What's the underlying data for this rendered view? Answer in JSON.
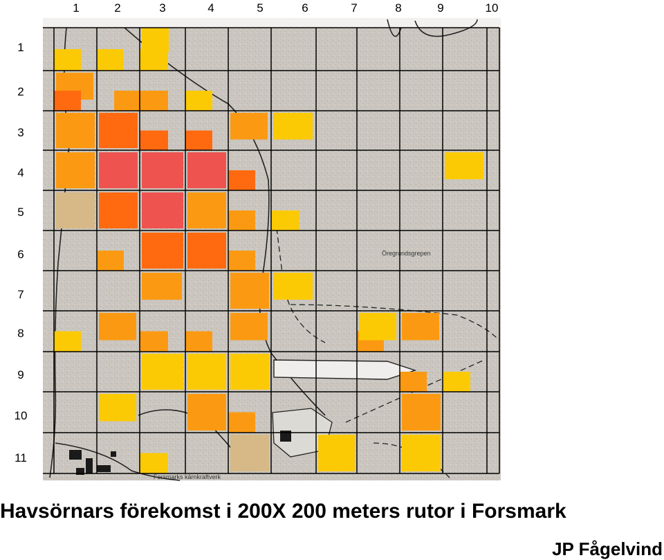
{
  "columns": [
    "1",
    "2",
    "3",
    "4",
    "5",
    "6",
    "7",
    "8",
    "9",
    "10"
  ],
  "rows": [
    "1",
    "2",
    "3",
    "4",
    "5",
    "6",
    "7",
    "8",
    "9",
    "10",
    "11"
  ],
  "map_labels": {
    "oregrundsgrepen": "Öregrundsgrepen",
    "forsmarks_kraftverk": "Forsmarks kärnkraftverk"
  },
  "title": "Havsörnars förekomst i 200X 200 meters rutor i Forsmark",
  "credit": "JP Fågelvind",
  "colors": {
    "red": "#ee5350",
    "orange_red": "#ff6a10",
    "orange": "#fb9a12",
    "yellow": "#fcca05",
    "tan": "#d6b986",
    "grid": "#000000",
    "map_bg": "#c9c5bf"
  },
  "patches": [
    {
      "c": 1,
      "r": 1,
      "p": "bl",
      "k": "yellow"
    },
    {
      "c": 2,
      "r": 1,
      "p": "bl",
      "k": "yellow"
    },
    {
      "c": 3,
      "r": 1,
      "p": "tl",
      "k": "yellow"
    },
    {
      "c": 3,
      "r": 1,
      "p": "bl",
      "k": "yellow"
    },
    {
      "c": 1,
      "r": 2,
      "p": "tr",
      "k": "orange"
    },
    {
      "c": 1,
      "r": 2,
      "p": "bl",
      "k": "orange_red"
    },
    {
      "c": 2,
      "r": 2,
      "p": "br",
      "k": "orange"
    },
    {
      "c": 3,
      "r": 2,
      "p": "bl",
      "k": "orange"
    },
    {
      "c": 4,
      "r": 2,
      "p": "bl",
      "k": "yellow"
    },
    {
      "c": 1,
      "r": 3,
      "p": "full",
      "k": "orange"
    },
    {
      "c": 2,
      "r": 3,
      "p": "full",
      "k": "orange_red"
    },
    {
      "c": 3,
      "r": 3,
      "p": "bl",
      "k": "orange_red"
    },
    {
      "c": 4,
      "r": 3,
      "p": "bl",
      "k": "orange_red"
    },
    {
      "c": 5,
      "r": 3,
      "p": "tr",
      "k": "orange"
    },
    {
      "c": 6,
      "r": 3,
      "p": "tr",
      "k": "yellow"
    },
    {
      "c": 1,
      "r": 4,
      "p": "full",
      "k": "orange"
    },
    {
      "c": 2,
      "r": 4,
      "p": "full",
      "k": "red"
    },
    {
      "c": 3,
      "r": 4,
      "p": "full",
      "k": "red"
    },
    {
      "c": 4,
      "r": 4,
      "p": "full",
      "k": "red"
    },
    {
      "c": 5,
      "r": 4,
      "p": "bl",
      "k": "orange_red"
    },
    {
      "c": 10,
      "r": 4,
      "p": "tr",
      "k": "yellow"
    },
    {
      "c": 1,
      "r": 5,
      "p": "full",
      "k": "tan"
    },
    {
      "c": 2,
      "r": 5,
      "p": "full",
      "k": "orange_red"
    },
    {
      "c": 3,
      "r": 5,
      "p": "full",
      "k": "red"
    },
    {
      "c": 4,
      "r": 5,
      "p": "full",
      "k": "orange"
    },
    {
      "c": 5,
      "r": 5,
      "p": "bl",
      "k": "orange"
    },
    {
      "c": 6,
      "r": 5,
      "p": "bl",
      "k": "yellow"
    },
    {
      "c": 2,
      "r": 6,
      "p": "bl",
      "k": "orange"
    },
    {
      "c": 3,
      "r": 6,
      "p": "full",
      "k": "orange_red"
    },
    {
      "c": 4,
      "r": 6,
      "p": "full",
      "k": "orange_red"
    },
    {
      "c": 5,
      "r": 6,
      "p": "bl",
      "k": "orange"
    },
    {
      "c": 3,
      "r": 7,
      "p": "tr",
      "k": "orange"
    },
    {
      "c": 5,
      "r": 7,
      "p": "full",
      "k": "orange"
    },
    {
      "c": 6,
      "r": 7,
      "p": "tr",
      "k": "yellow"
    },
    {
      "c": 2,
      "r": 8,
      "p": "tr",
      "k": "orange"
    },
    {
      "c": 1,
      "r": 8,
      "p": "bl",
      "k": "yellow"
    },
    {
      "c": 3,
      "r": 8,
      "p": "bl",
      "k": "orange"
    },
    {
      "c": 4,
      "r": 8,
      "p": "bl",
      "k": "orange"
    },
    {
      "c": 5,
      "r": 8,
      "p": "tr",
      "k": "orange"
    },
    {
      "c": 8,
      "r": 8,
      "p": "bl",
      "k": "orange"
    },
    {
      "c": 8,
      "r": 8,
      "p": "tr",
      "k": "yellow"
    },
    {
      "c": 9,
      "r": 8,
      "p": "tr",
      "k": "orange"
    },
    {
      "c": 3,
      "r": 9,
      "p": "full",
      "k": "yellow"
    },
    {
      "c": 4,
      "r": 9,
      "p": "full",
      "k": "yellow"
    },
    {
      "c": 5,
      "r": 9,
      "p": "full",
      "k": "yellow"
    },
    {
      "c": 9,
      "r": 9,
      "p": "bl",
      "k": "orange"
    },
    {
      "c": 10,
      "r": 9,
      "p": "bl",
      "k": "yellow"
    },
    {
      "c": 2,
      "r": 10,
      "p": "tr",
      "k": "yellow"
    },
    {
      "c": 4,
      "r": 10,
      "p": "full",
      "k": "orange"
    },
    {
      "c": 5,
      "r": 10,
      "p": "bl",
      "k": "orange"
    },
    {
      "c": 9,
      "r": 10,
      "p": "full",
      "k": "orange"
    },
    {
      "c": 3,
      "r": 11,
      "p": "bl",
      "k": "yellow"
    },
    {
      "c": 5,
      "r": 11,
      "p": "full",
      "k": "tan"
    },
    {
      "c": 7,
      "r": 11,
      "p": "full",
      "k": "yellow"
    },
    {
      "c": 9,
      "r": 11,
      "p": "full",
      "k": "yellow"
    }
  ]
}
